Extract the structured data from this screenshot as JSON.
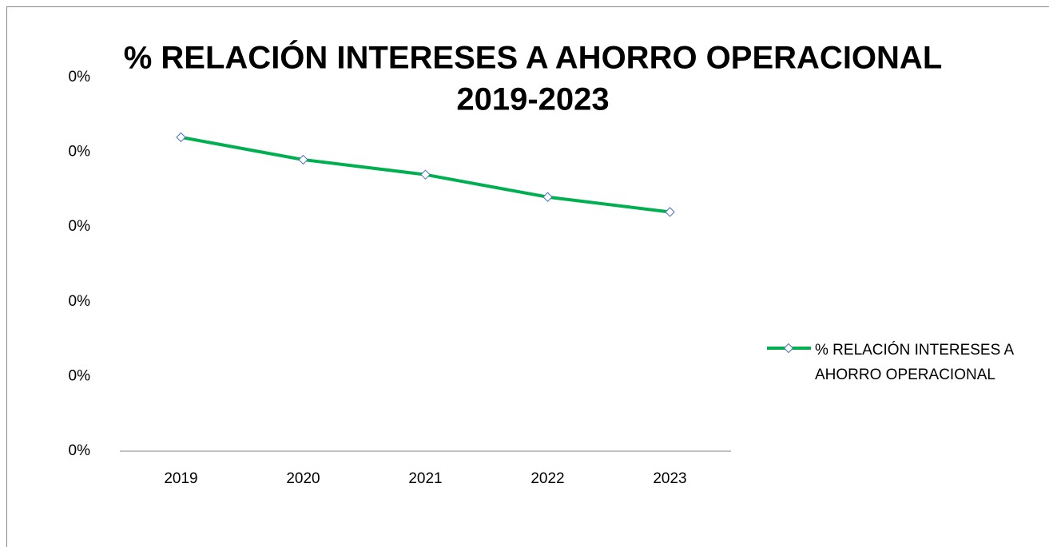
{
  "chart_data": {
    "type": "line",
    "title": [
      "% RELACIÓN INTERESES A AHORRO OPERACIONAL",
      "2019-2023"
    ],
    "categories": [
      "2019",
      "2020",
      "2021",
      "2022",
      "2023"
    ],
    "series": [
      {
        "name": "% RELACIÓN INTERESES A AHORRO OPERACIONAL",
        "color": "#00b050",
        "marker_color": "#4472c4",
        "values": [
          0.42,
          0.39,
          0.37,
          0.34,
          0.32
        ]
      }
    ],
    "ylim": [
      0,
      0.5
    ],
    "yticks": [
      {
        "value": 0,
        "label": "0%"
      },
      {
        "value": 0.1,
        "label": "0%"
      },
      {
        "value": 0.2,
        "label": "0%"
      },
      {
        "value": 0.3,
        "label": "0%"
      },
      {
        "value": 0.4,
        "label": "0%"
      },
      {
        "value": 0.5,
        "label": "0%"
      }
    ],
    "grid": false,
    "legend": "right"
  }
}
